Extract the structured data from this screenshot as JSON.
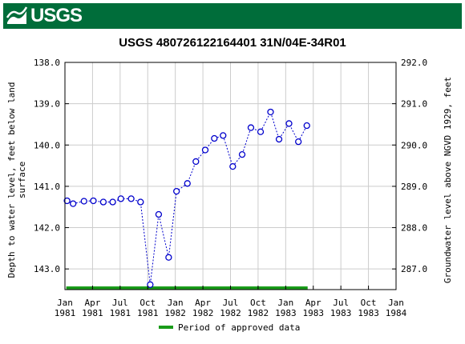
{
  "header": {
    "logo_text": "USGS",
    "banner_color": "#006d3a"
  },
  "chart_data": {
    "type": "scatter",
    "title": "USGS 480726122164401 31N/04E-34R01",
    "ylabel_left": "Depth to water level, feet below land surface",
    "ylabel_left_lines": [
      "Depth to water level, feet below land",
      "surface"
    ],
    "ylabel_right": "Groundwater level above NGVD 1929, feet",
    "ylim_left": [
      143.5,
      138.0
    ],
    "ylim_right": [
      286.5,
      292.0
    ],
    "y_inverted": true,
    "y_ticks_left": [
      "138.0",
      "139.0",
      "140.0",
      "141.0",
      "142.0",
      "143.0"
    ],
    "y_ticks_right": [
      "292.0",
      "291.0",
      "290.0",
      "289.0",
      "288.0",
      "287.0"
    ],
    "x_ticks": [
      {
        "top": "Jan",
        "bottom": "1981"
      },
      {
        "top": "Apr",
        "bottom": "1981"
      },
      {
        "top": "Jul",
        "bottom": "1981"
      },
      {
        "top": "Oct",
        "bottom": "1981"
      },
      {
        "top": "Jan",
        "bottom": "1982"
      },
      {
        "top": "Apr",
        "bottom": "1982"
      },
      {
        "top": "Jul",
        "bottom": "1982"
      },
      {
        "top": "Oct",
        "bottom": "1982"
      },
      {
        "top": "Jan",
        "bottom": "1983"
      },
      {
        "top": "Apr",
        "bottom": "1983"
      },
      {
        "top": "Jul",
        "bottom": "1983"
      },
      {
        "top": "Oct",
        "bottom": "1983"
      },
      {
        "top": "Jan",
        "bottom": "1984"
      }
    ],
    "xlim": [
      "1981-01-01",
      "1984-01-01"
    ],
    "grid": true,
    "series": [
      {
        "color": "#0000cc",
        "style": "dotted-line-with-circles",
        "points": [
          {
            "x": "1981-01-08",
            "y": 141.35
          },
          {
            "x": "1981-01-28",
            "y": 141.42
          },
          {
            "x": "1981-03-05",
            "y": 141.36
          },
          {
            "x": "1981-04-05",
            "y": 141.35
          },
          {
            "x": "1981-05-08",
            "y": 141.38
          },
          {
            "x": "1981-06-08",
            "y": 141.38
          },
          {
            "x": "1981-07-05",
            "y": 141.3
          },
          {
            "x": "1981-08-08",
            "y": 141.3
          },
          {
            "x": "1981-09-08",
            "y": 141.38
          },
          {
            "x": "1981-10-10",
            "y": 143.38
          },
          {
            "x": "1981-11-07",
            "y": 141.68
          },
          {
            "x": "1981-12-10",
            "y": 142.72
          },
          {
            "x": "1982-01-05",
            "y": 141.12
          },
          {
            "x": "1982-02-10",
            "y": 140.93
          },
          {
            "x": "1982-03-10",
            "y": 140.4
          },
          {
            "x": "1982-04-10",
            "y": 140.12
          },
          {
            "x": "1982-05-10",
            "y": 139.84
          },
          {
            "x": "1982-06-08",
            "y": 139.77
          },
          {
            "x": "1982-07-10",
            "y": 140.52
          },
          {
            "x": "1982-08-10",
            "y": 140.23
          },
          {
            "x": "1982-09-08",
            "y": 139.58
          },
          {
            "x": "1982-10-10",
            "y": 139.68
          },
          {
            "x": "1982-11-12",
            "y": 139.2
          },
          {
            "x": "1982-12-10",
            "y": 139.86
          },
          {
            "x": "1983-01-12",
            "y": 139.48
          },
          {
            "x": "1983-02-12",
            "y": 139.92
          },
          {
            "x": "1983-03-12",
            "y": 139.53
          }
        ]
      }
    ],
    "approved_period": {
      "start": "1981-01-08",
      "end": "1983-03-12",
      "color": "#1a9c1a",
      "label": "Period of approved data"
    },
    "legend_position": "bottom-center"
  }
}
